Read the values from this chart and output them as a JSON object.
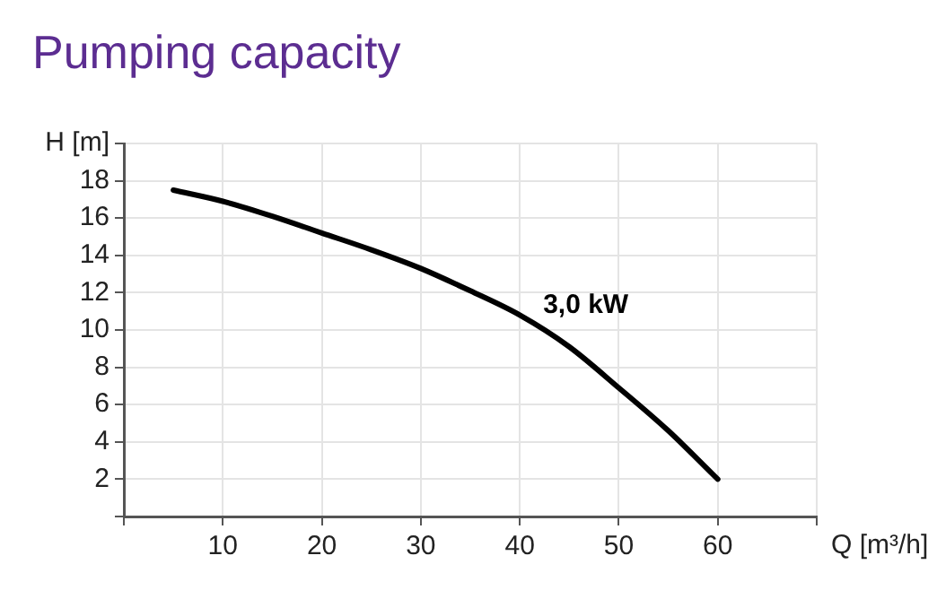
{
  "chart_data": {
    "type": "line",
    "title": "Pumping capacity",
    "xlabel": "Q [m³/h]",
    "ylabel": "H [m]",
    "x": [
      5,
      10,
      15,
      20,
      25,
      30,
      35,
      40,
      45,
      50,
      55,
      60
    ],
    "series": [
      {
        "name": "3,0 kW",
        "color": "#000000",
        "values": [
          17.5,
          16.9,
          16.1,
          15.2,
          14.3,
          13.3,
          12.1,
          10.8,
          9.1,
          6.9,
          4.6,
          2.0
        ]
      }
    ],
    "xlim": [
      0,
      70
    ],
    "xticks": [
      {
        "value": 0,
        "label": null
      },
      10,
      20,
      30,
      40,
      50,
      60,
      {
        "value": 70,
        "label": null
      }
    ],
    "ylim": [
      0,
      20
    ],
    "yticks": [
      {
        "value": 0,
        "label": null
      },
      2,
      4,
      6,
      8,
      10,
      12,
      14,
      16,
      18,
      {
        "value": 20,
        "label": null
      }
    ],
    "grid": true,
    "legend": false,
    "marker": "none",
    "line_style": "solid"
  }
}
